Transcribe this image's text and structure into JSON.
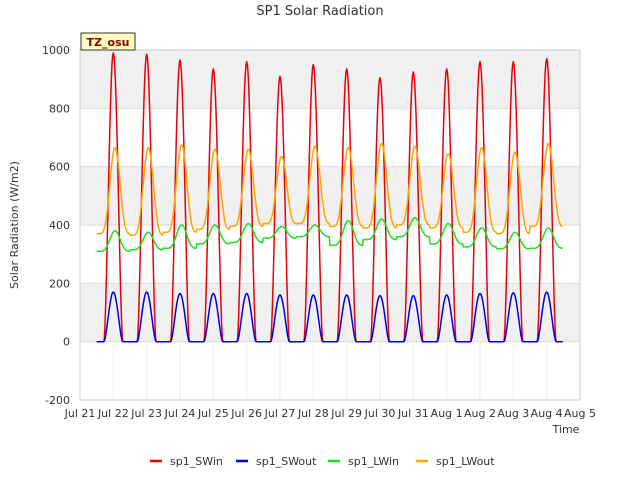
{
  "chart_data": {
    "type": "line",
    "title": "SP1 Solar Radiation",
    "xlabel": "Time",
    "ylabel": "Solar Radiation (W/m2)",
    "badge": "TZ_osu",
    "xlim": [
      0,
      15
    ],
    "ylim": [
      -200,
      1000
    ],
    "x_tick_labels": [
      "Jul 21",
      "Jul 22",
      "Jul 23",
      "Jul 24",
      "Jul 25",
      "Jul 26",
      "Jul 27",
      "Jul 28",
      "Jul 29",
      "Jul 30",
      "Jul 31",
      "Aug 1",
      "Aug 2",
      "Aug 3",
      "Aug 4",
      "Aug 5"
    ],
    "y_ticks": [
      -200,
      0,
      200,
      400,
      600,
      800,
      1000
    ],
    "grid": true,
    "legend_position": "bottom",
    "days_start_index": 0.5,
    "day_peak_hour_fraction": 0.5,
    "series": [
      {
        "name": "sp1_SWin",
        "color": "#e8000b",
        "kind": "daily_peak",
        "night_value": 0,
        "day_peaks": [
          990,
          985,
          965,
          935,
          960,
          910,
          950,
          935,
          905,
          925,
          935,
          960,
          960,
          970
        ]
      },
      {
        "name": "sp1_SWout",
        "color": "#0000e0",
        "kind": "daily_peak",
        "night_value": 0,
        "day_peaks": [
          170,
          170,
          165,
          165,
          165,
          160,
          160,
          160,
          158,
          158,
          160,
          165,
          168,
          170
        ]
      },
      {
        "name": "sp1_LWin",
        "color": "#22dd22",
        "kind": "daily_wave",
        "day_peaks": [
          380,
          375,
          400,
          400,
          405,
          395,
          400,
          415,
          420,
          425,
          405,
          390,
          375,
          390
        ],
        "night_mins": [
          310,
          315,
          320,
          335,
          340,
          355,
          360,
          330,
          350,
          360,
          335,
          325,
          318,
          320
        ]
      },
      {
        "name": "sp1_LWout",
        "color": "#ffa500",
        "kind": "daily_wave",
        "day_peaks": [
          665,
          665,
          675,
          660,
          660,
          635,
          670,
          665,
          680,
          670,
          645,
          665,
          650,
          680
        ],
        "night_mins": [
          370,
          365,
          375,
          385,
          395,
          405,
          405,
          395,
          390,
          400,
          390,
          375,
          370,
          395
        ]
      }
    ]
  }
}
